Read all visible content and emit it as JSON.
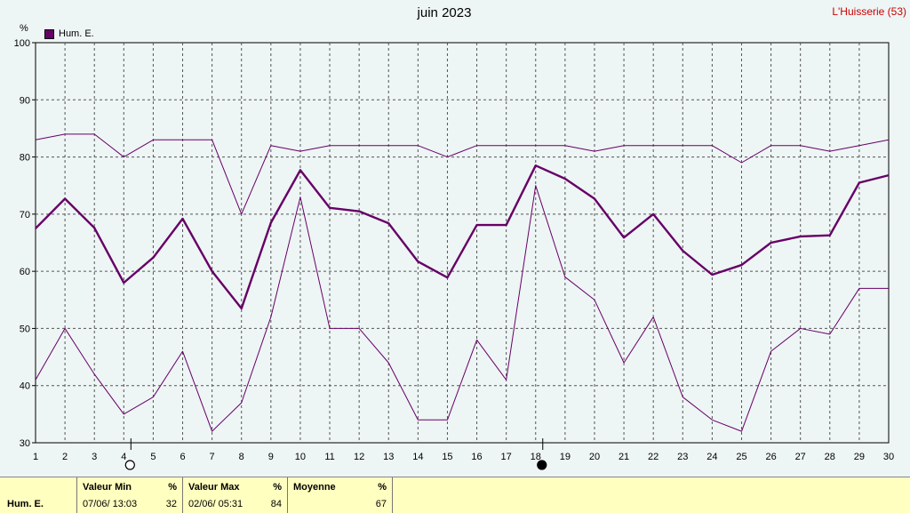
{
  "header": {
    "title": "juin 2023",
    "location": "L'Huisserie (53)",
    "unit": "%",
    "legend_label": "Hum. E.",
    "legend_color": "#660066"
  },
  "chart_data": {
    "type": "line",
    "title": "juin 2023",
    "ylabel": "%",
    "ylim": [
      30,
      100
    ],
    "yticks": [
      30,
      40,
      50,
      60,
      70,
      80,
      90,
      100
    ],
    "x": [
      1,
      2,
      3,
      4,
      5,
      6,
      7,
      8,
      9,
      10,
      11,
      12,
      13,
      14,
      15,
      16,
      17,
      18,
      19,
      20,
      21,
      22,
      23,
      24,
      25,
      26,
      27,
      28,
      29,
      30
    ],
    "grid": true,
    "moon_markers": [
      {
        "day": 4,
        "phase": "full"
      },
      {
        "day": 18,
        "phase": "new"
      }
    ],
    "series": [
      {
        "name": "Hum. E.",
        "role": "max",
        "values": [
          83,
          84,
          84,
          80,
          83,
          83,
          83,
          70,
          82,
          81,
          82,
          82,
          82,
          82,
          80,
          82,
          82,
          82,
          82,
          81,
          82,
          82,
          82,
          82,
          79,
          82,
          82,
          81,
          82,
          83
        ]
      },
      {
        "name": "Hum. E.",
        "role": "mean",
        "values": [
          67.5,
          72.7,
          67.6,
          58,
          62.4,
          69.2,
          60,
          53.5,
          68.5,
          77.7,
          71.1,
          70.5,
          68.4,
          61.7,
          58.9,
          68.1,
          68.1,
          78.5,
          76.2,
          72.7,
          65.9,
          70,
          63.6,
          59.4,
          61.1,
          65,
          66.1,
          66.3,
          75.5,
          76.8
        ]
      },
      {
        "name": "Hum. E.",
        "role": "min",
        "values": [
          41,
          50,
          42,
          35,
          38,
          46,
          32,
          37,
          52,
          73,
          50,
          50,
          44,
          34,
          34,
          48,
          41,
          75,
          59,
          55,
          44,
          52,
          38,
          34,
          32,
          46,
          50,
          49,
          57,
          57
        ]
      }
    ]
  },
  "stats": {
    "series_label": "Hum. E.",
    "min": {
      "label": "Valeur Min",
      "unit": "%",
      "when": "07/06/  13:03",
      "value": "32"
    },
    "max": {
      "label": "Valeur Max",
      "unit": "%",
      "when": "02/06/  05:31",
      "value": "84"
    },
    "mean": {
      "label": "Moyenne",
      "unit": "%",
      "value": "67"
    }
  }
}
